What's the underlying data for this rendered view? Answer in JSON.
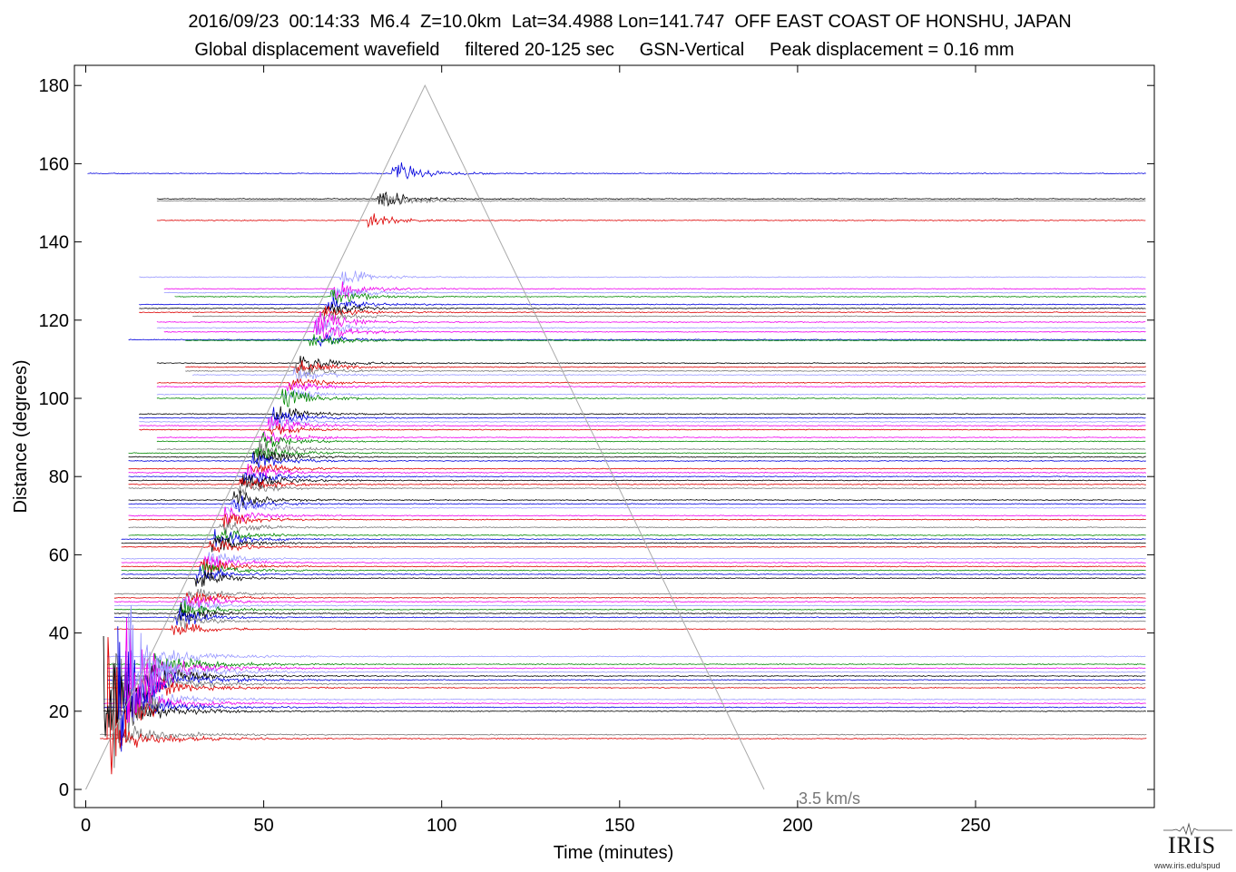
{
  "header": {
    "line1": "2016/09/23  00:14:33  M6.4  Z=10.0km  Lat=34.4988 Lon=141.747  OFF EAST COAST OF HONSHU, JAPAN",
    "line2": "Global displacement wavefield     filtered 20-125 sec     GSN-Vertical     Peak displacement = 0.16 mm"
  },
  "logo": {
    "text": "IRIS",
    "url": "www.iris.edu/spud",
    "icon": "seismogram-logo-icon"
  },
  "colors": {
    "blue": "#0000dd",
    "black": "#000000",
    "red": "#dd0000",
    "green": "#008800",
    "magenta": "#ee00ee",
    "lavender": "#9999ff",
    "gray": "#777777",
    "guide": "#aaaaaa"
  },
  "chart_data": {
    "type": "line",
    "title": "",
    "xlabel": "Time (minutes)",
    "ylabel": "Distance (degrees)",
    "xlim": [
      -3,
      300
    ],
    "ylim": [
      -5,
      185
    ],
    "xticks": [
      0,
      50,
      100,
      150,
      200,
      250
    ],
    "yticks": [
      0,
      20,
      40,
      60,
      80,
      100,
      120,
      140,
      160,
      180
    ],
    "guide_line": {
      "label": "3.5 km/s",
      "points": [
        [
          0,
          0
        ],
        [
          95.3,
          180
        ],
        [
          190.6,
          0
        ]
      ]
    },
    "traces": [
      {
        "d": 157.5,
        "c": "blue",
        "s": 0,
        "a": 1.0
      },
      {
        "d": 151,
        "c": "black",
        "s": 20,
        "a": 0.8
      },
      {
        "d": 150.5,
        "c": "gray",
        "s": 20,
        "a": 0.6
      },
      {
        "d": 145.5,
        "c": "red",
        "s": 20,
        "a": 0.6
      },
      {
        "d": 131,
        "c": "lavender",
        "s": 15,
        "a": 0.7
      },
      {
        "d": 128,
        "c": "magenta",
        "s": 22,
        "a": 0.9
      },
      {
        "d": 127,
        "c": "lavender",
        "s": 22,
        "a": 0.7
      },
      {
        "d": 126,
        "c": "green",
        "s": 25,
        "a": 0.8
      },
      {
        "d": 124,
        "c": "blue",
        "s": 15,
        "a": 0.6
      },
      {
        "d": 123,
        "c": "black",
        "s": 15,
        "a": 0.6
      },
      {
        "d": 122,
        "c": "red",
        "s": 15,
        "a": 0.6
      },
      {
        "d": 121,
        "c": "gray",
        "s": 30,
        "a": 0.6
      },
      {
        "d": 119.5,
        "c": "magenta",
        "s": 20,
        "a": 0.8
      },
      {
        "d": 118,
        "c": "lavender",
        "s": 20,
        "a": 0.9
      },
      {
        "d": 117,
        "c": "magenta",
        "s": 22,
        "a": 1.0
      },
      {
        "d": 115,
        "c": "blue",
        "s": 12,
        "a": 0.6
      },
      {
        "d": 114.8,
        "c": "green",
        "s": 28,
        "a": 0.6
      },
      {
        "d": 109,
        "c": "black",
        "s": 20,
        "a": 0.8
      },
      {
        "d": 108,
        "c": "red",
        "s": 28,
        "a": 0.7
      },
      {
        "d": 107,
        "c": "gray",
        "s": 28,
        "a": 0.6
      },
      {
        "d": 106,
        "c": "lavender",
        "s": 30,
        "a": 0.6
      },
      {
        "d": 104,
        "c": "red",
        "s": 20,
        "a": 0.6
      },
      {
        "d": 103,
        "c": "magenta",
        "s": 20,
        "a": 0.6
      },
      {
        "d": 101,
        "c": "lavender",
        "s": 20,
        "a": 0.6
      },
      {
        "d": 100,
        "c": "green",
        "s": 20,
        "a": 1.0
      },
      {
        "d": 96,
        "c": "black",
        "s": 15,
        "a": 0.8
      },
      {
        "d": 95,
        "c": "blue",
        "s": 15,
        "a": 0.8
      },
      {
        "d": 94,
        "c": "lavender",
        "s": 15,
        "a": 0.6
      },
      {
        "d": 93,
        "c": "magenta",
        "s": 15,
        "a": 0.8
      },
      {
        "d": 92,
        "c": "red",
        "s": 15,
        "a": 0.6
      },
      {
        "d": 90,
        "c": "magenta",
        "s": 20,
        "a": 0.8
      },
      {
        "d": 89,
        "c": "green",
        "s": 20,
        "a": 0.8
      },
      {
        "d": 87,
        "c": "gray",
        "s": 20,
        "a": 1.0
      },
      {
        "d": 86,
        "c": "green",
        "s": 12,
        "a": 0.8
      },
      {
        "d": 85,
        "c": "black",
        "s": 12,
        "a": 0.8
      },
      {
        "d": 84,
        "c": "blue",
        "s": 12,
        "a": 0.8
      },
      {
        "d": 82,
        "c": "red",
        "s": 12,
        "a": 0.8
      },
      {
        "d": 81,
        "c": "magenta",
        "s": 12,
        "a": 0.8
      },
      {
        "d": 80,
        "c": "blue",
        "s": 12,
        "a": 0.8
      },
      {
        "d": 79,
        "c": "black",
        "s": 12,
        "a": 1.0
      },
      {
        "d": 78,
        "c": "red",
        "s": 12,
        "a": 0.7
      },
      {
        "d": 77,
        "c": "gray",
        "s": 12,
        "a": 0.7
      },
      {
        "d": 74,
        "c": "black",
        "s": 12,
        "a": 0.8
      },
      {
        "d": 73,
        "c": "blue",
        "s": 12,
        "a": 0.8
      },
      {
        "d": 72,
        "c": "lavender",
        "s": 12,
        "a": 0.7
      },
      {
        "d": 70,
        "c": "magenta",
        "s": 12,
        "a": 0.8
      },
      {
        "d": 69,
        "c": "red",
        "s": 12,
        "a": 0.7
      },
      {
        "d": 67,
        "c": "gray",
        "s": 12,
        "a": 0.8
      },
      {
        "d": 65,
        "c": "green",
        "s": 12,
        "a": 0.8
      },
      {
        "d": 64,
        "c": "blue",
        "s": 10,
        "a": 0.8
      },
      {
        "d": 63,
        "c": "black",
        "s": 10,
        "a": 0.8
      },
      {
        "d": 62,
        "c": "red",
        "s": 10,
        "a": 0.7
      },
      {
        "d": 59,
        "c": "lavender",
        "s": 10,
        "a": 0.8
      },
      {
        "d": 58,
        "c": "magenta",
        "s": 10,
        "a": 0.8
      },
      {
        "d": 57,
        "c": "red",
        "s": 10,
        "a": 0.8
      },
      {
        "d": 56,
        "c": "green",
        "s": 10,
        "a": 0.8
      },
      {
        "d": 55,
        "c": "blue",
        "s": 10,
        "a": 0.8
      },
      {
        "d": 54,
        "c": "black",
        "s": 10,
        "a": 0.8
      },
      {
        "d": 50,
        "c": "gray",
        "s": 8,
        "a": 0.7
      },
      {
        "d": 49,
        "c": "red",
        "s": 8,
        "a": 0.8
      },
      {
        "d": 48,
        "c": "magenta",
        "s": 8,
        "a": 0.8
      },
      {
        "d": 47,
        "c": "lavender",
        "s": 8,
        "a": 0.8
      },
      {
        "d": 46,
        "c": "green",
        "s": 8,
        "a": 0.8
      },
      {
        "d": 45,
        "c": "black",
        "s": 8,
        "a": 0.8
      },
      {
        "d": 44,
        "c": "blue",
        "s": 8,
        "a": 0.8
      },
      {
        "d": 43,
        "c": "gray",
        "s": 8,
        "a": 0.7
      },
      {
        "d": 41,
        "c": "red",
        "s": 8,
        "a": 0.8
      },
      {
        "d": 34,
        "c": "lavender",
        "s": 6,
        "a": 0.7
      },
      {
        "d": 32,
        "c": "green",
        "s": 6,
        "a": 0.8
      },
      {
        "d": 31,
        "c": "magenta",
        "s": 6,
        "a": 1.0
      },
      {
        "d": 30,
        "c": "lavender",
        "s": 6,
        "a": 1.0
      },
      {
        "d": 29,
        "c": "black",
        "s": 6,
        "a": 0.8
      },
      {
        "d": 28,
        "c": "blue",
        "s": 6,
        "a": 0.8
      },
      {
        "d": 27,
        "c": "gray",
        "s": 6,
        "a": 0.8
      },
      {
        "d": 26,
        "c": "red",
        "s": 6,
        "a": 0.8
      },
      {
        "d": 23,
        "c": "lavender",
        "s": 5,
        "a": 0.8
      },
      {
        "d": 22,
        "c": "magenta",
        "s": 5,
        "a": 0.8
      },
      {
        "d": 21,
        "c": "blue",
        "s": 5,
        "a": 0.8
      },
      {
        "d": 20,
        "c": "black",
        "s": 5,
        "a": 0.8
      },
      {
        "d": 14,
        "c": "gray",
        "s": 4,
        "a": 0.8
      },
      {
        "d": 13,
        "c": "red",
        "s": 4,
        "a": 0.8
      }
    ]
  }
}
